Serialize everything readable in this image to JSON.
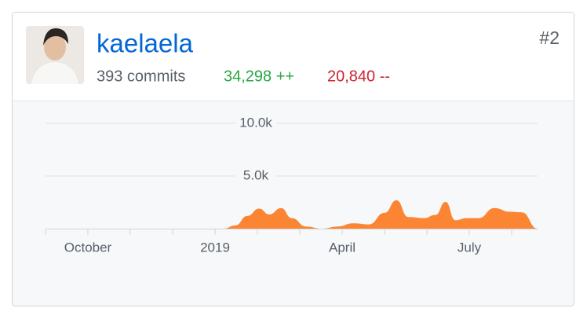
{
  "header": {
    "username": "kaelaela",
    "rank": "#2",
    "commits": "393 commits",
    "additions": "34,298 ++",
    "deletions": "20,840 --"
  },
  "chart_data": {
    "type": "area",
    "color": "#fb8532",
    "x": [
      0,
      3.93,
      4.2,
      4.48,
      4.76,
      5.04,
      5.28,
      5.56,
      5.81,
      6.15,
      6.52,
      6.89,
      7.26,
      7.63,
      8.0,
      8.28,
      8.56,
      8.93,
      9.2,
      9.44,
      9.67,
      9.94,
      10.22,
      10.59,
      10.96,
      11.24,
      11.61
    ],
    "values": [
      0,
      0,
      0,
      300,
      1200,
      1900,
      1350,
      1950,
      1000,
      200,
      0,
      200,
      500,
      400,
      1500,
      2700,
      1100,
      1000,
      1300,
      2550,
      800,
      1000,
      1000,
      1950,
      1600,
      1550,
      0
    ],
    "xlim": [
      0,
      11.61
    ],
    "xticks": [
      {
        "value": 1,
        "label": "October"
      },
      {
        "value": 4,
        "label": "2019"
      },
      {
        "value": 7,
        "label": "April"
      },
      {
        "value": 10,
        "label": "July"
      }
    ],
    "minor_xticks": [
      0,
      2,
      3,
      5,
      6,
      8,
      9,
      11
    ],
    "ylim": [
      0,
      10000
    ],
    "yticks": [
      {
        "value": 5000,
        "label": "5.0k"
      },
      {
        "value": 10000,
        "label": "10.0k"
      }
    ],
    "grid": true
  }
}
